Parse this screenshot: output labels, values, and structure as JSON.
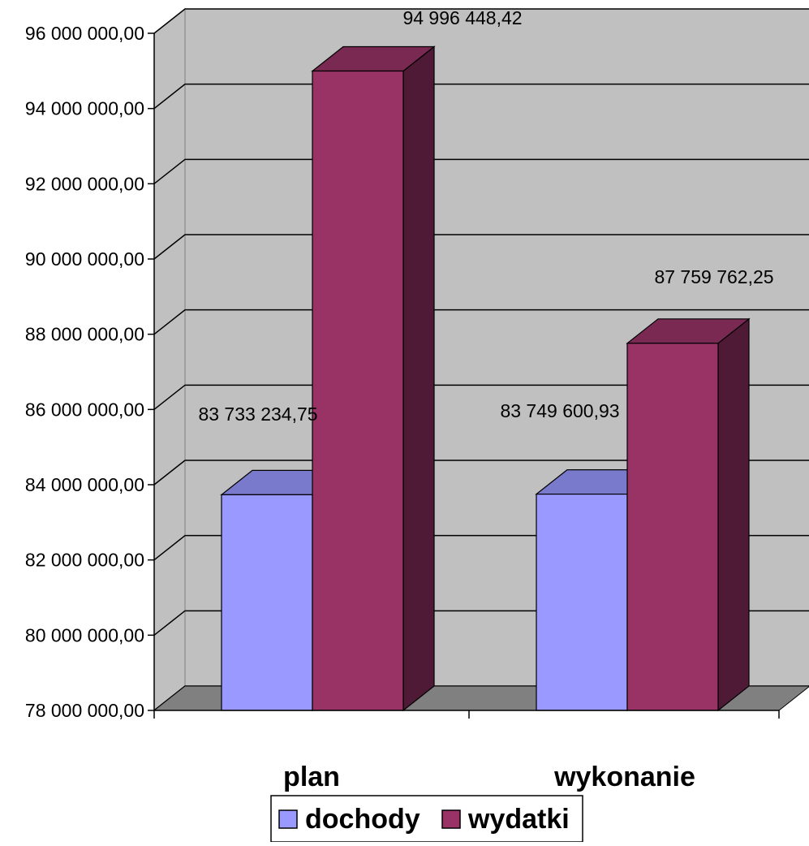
{
  "chart_data": {
    "type": "bar",
    "categories": [
      "plan",
      "wykonanie"
    ],
    "series": [
      {
        "name": "dochody",
        "values": [
          83733234.75,
          83749600.93
        ],
        "labels": [
          "83 733 234,75",
          "83 749 600,93"
        ]
      },
      {
        "name": "wydatki",
        "values": [
          94996448.42,
          87759762.25
        ],
        "labels": [
          "94 996 448,42",
          "87 759 762,25"
        ]
      }
    ],
    "yticks": [
      "78 000 000,00",
      "80 000 000,00",
      "82 000 000,00",
      "84 000 000,00",
      "86 000 000,00",
      "88 000 000,00",
      "90 000 000,00",
      "92 000 000,00",
      "94 000 000,00",
      "96 000 000,00"
    ],
    "ylim": [
      78000000,
      96000000
    ],
    "grid": true,
    "legend_position": "bottom",
    "style": "3d-clustered-column",
    "colors": {
      "dochody": "#9999ff",
      "wydatki": "#993366",
      "wall": "#c0c0c0",
      "floor": "#808080"
    }
  }
}
